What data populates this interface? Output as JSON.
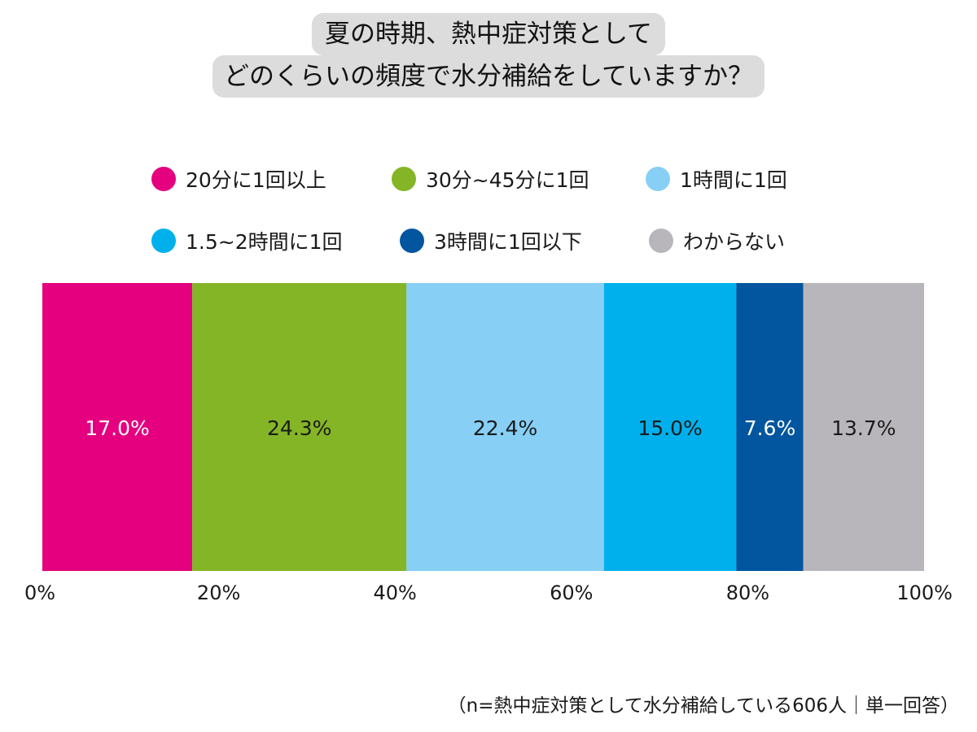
{
  "chart_data": {
    "type": "bar",
    "orientation": "horizontal-stacked-100",
    "title_lines": [
      "夏の時期、熱中症対策として",
      "どのくらいの頻度で水分補給をしていますか？"
    ],
    "series": [
      {
        "name": "20分に1回以上",
        "value": 17.0,
        "label": "17.0%",
        "color": "#e4007f",
        "label_color": "#ffffff"
      },
      {
        "name": "30分~45分に1回",
        "value": 24.3,
        "label": "24.3%",
        "color": "#84b526",
        "label_color": "#1a1a1a"
      },
      {
        "name": "1時間に1回",
        "value": 22.4,
        "label": "22.4%",
        "color": "#87cff5",
        "label_color": "#1a1a1a"
      },
      {
        "name": "1.5~2時間に1回",
        "value": 15.0,
        "label": "15.0%",
        "color": "#00b0ec",
        "label_color": "#1a1a1a"
      },
      {
        "name": "3時間に1回以下",
        "value": 7.6,
        "label": "7.6%",
        "color": "#02559f",
        "label_color": "#ffffff"
      },
      {
        "name": "わからない",
        "value": 13.7,
        "label": "13.7%",
        "color": "#b8b6ba",
        "label_color": "#1a1a1a"
      }
    ],
    "x_ticks": [
      "0%",
      "20%",
      "40%",
      "60%",
      "80%",
      "100%"
    ],
    "xlim": [
      0,
      100
    ],
    "grid": false,
    "legend_position": "top",
    "note": "（n=熱中症対策として水分補給している606人｜単一回答）"
  }
}
